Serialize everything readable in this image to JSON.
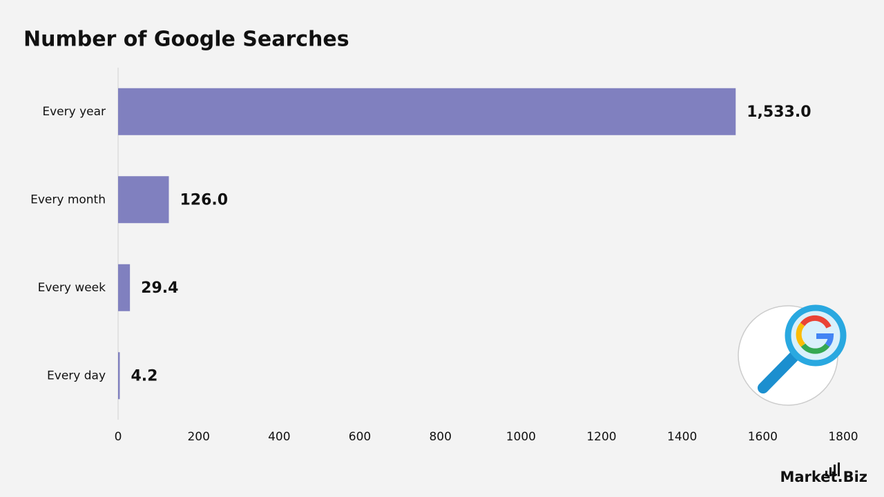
{
  "chart_data": {
    "type": "bar",
    "orientation": "horizontal",
    "title": "Number of Google Searches",
    "categories": [
      "Every year",
      "Every month",
      "Every week",
      "Every day"
    ],
    "values": [
      1533,
      126,
      29.4,
      4.2
    ],
    "value_labels": [
      "1,533.0",
      "126.0",
      "29.4",
      "4.2"
    ],
    "color": "#8080bf",
    "xlim": [
      0,
      1800
    ],
    "xticks": [
      0,
      200,
      400,
      600,
      800,
      1000,
      1200,
      1400,
      1600,
      1800
    ],
    "brand": "Market.Biz"
  }
}
